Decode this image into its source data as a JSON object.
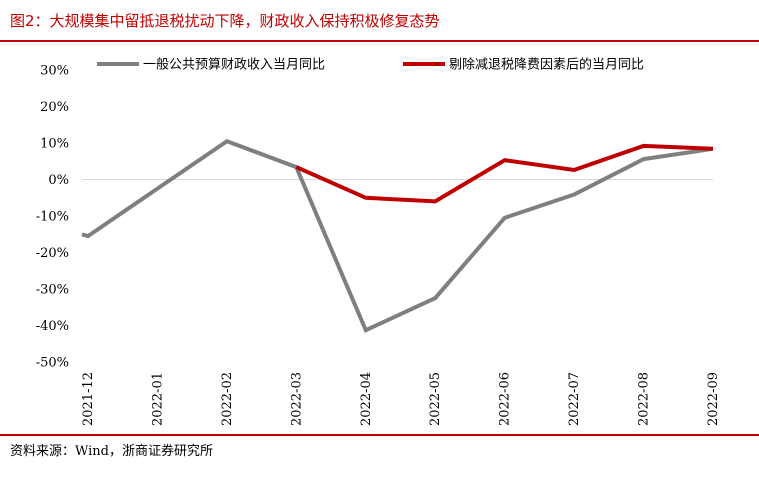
{
  "header": {
    "title": "图2：大规模集中留抵退税扰动下降，财政收入保持积极修复态势"
  },
  "footer": {
    "source": "资料来源：Wind，浙商证券研究所"
  },
  "colors": {
    "accent": "#c00000",
    "series_gray": "#7f7f7f",
    "series_red": "#c00000",
    "axis": "#d9d9d9"
  },
  "chart_data": {
    "type": "line",
    "title": "",
    "xlabel": "",
    "ylabel": "",
    "x": [
      "2021-12",
      "2022-01",
      "2022-02",
      "2022-03",
      "2022-04",
      "2022-05",
      "2022-06",
      "2022-07",
      "2022-08",
      "2022-09"
    ],
    "yticks": [
      "30%",
      "20%",
      "10%",
      "0%",
      "-10%",
      "-20%",
      "-30%",
      "-40%",
      "-50%"
    ],
    "ylim": [
      -50,
      30
    ],
    "grid": false,
    "legend_position": "top",
    "series": [
      {
        "name": "一般公共预算财政收入当月同比",
        "color": "#7f7f7f",
        "values": [
          -15.5,
          -2.5,
          10.5,
          3.4,
          -41.3,
          -32.5,
          -10.5,
          -4.1,
          5.6,
          8.4
        ]
      },
      {
        "name": "剔除减退税降费因素后的当月同比",
        "color": "#c00000",
        "values": [
          null,
          null,
          null,
          3.4,
          -5.0,
          -6.0,
          5.3,
          2.6,
          9.2,
          8.4
        ]
      }
    ]
  }
}
